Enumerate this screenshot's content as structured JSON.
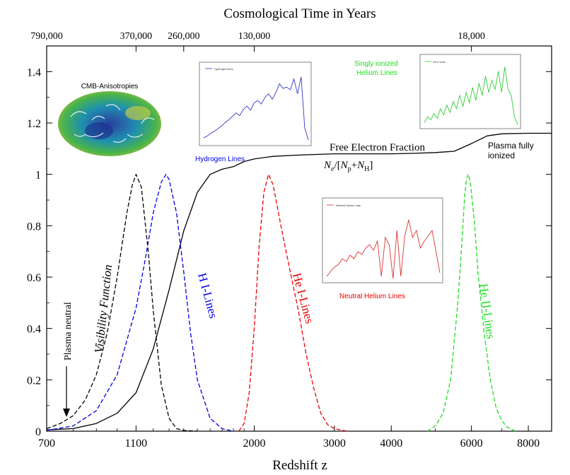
{
  "chart_data": {
    "type": "line",
    "title": "Cosmological Time in Years",
    "xlabel": "Redshift z",
    "ylabel": "",
    "xscale": "log",
    "xlim": [
      700,
      9000
    ],
    "ylim": [
      0,
      1.5
    ],
    "grid": false,
    "x_ticks": [
      {
        "value": 700,
        "label": "700"
      },
      {
        "value": 1100,
        "label": "1100"
      },
      {
        "value": 2000,
        "label": "2000"
      },
      {
        "value": 3000,
        "label": "3000"
      },
      {
        "value": 4000,
        "label": "4000"
      },
      {
        "value": 6000,
        "label": "6000"
      },
      {
        "value": 8000,
        "label": "8000"
      }
    ],
    "y_ticks": [
      {
        "value": 0,
        "label": "0"
      },
      {
        "value": 0.2,
        "label": "0.2"
      },
      {
        "value": 0.4,
        "label": "0.4"
      },
      {
        "value": 0.6,
        "label": "0.6"
      },
      {
        "value": 0.8,
        "label": "0.8"
      },
      {
        "value": 1,
        "label": "1"
      },
      {
        "value": 1.2,
        "label": "1.2"
      },
      {
        "value": 1.4,
        "label": "1.4"
      }
    ],
    "top_ticks": [
      {
        "z": 700,
        "label": "790,000"
      },
      {
        "z": 1100,
        "label": "370,000"
      },
      {
        "z": 1400,
        "label": "260,000"
      },
      {
        "z": 2000,
        "label": "130,000"
      },
      {
        "z": 6000,
        "label": "18,000"
      }
    ],
    "series": [
      {
        "name": "Free Electron Fraction",
        "color": "#000000",
        "dash": "solid",
        "x": [
          700,
          800,
          900,
          1000,
          1100,
          1200,
          1300,
          1400,
          1500,
          1600,
          1700,
          1800,
          1900,
          2000,
          2200,
          2500,
          3000,
          3500,
          4000,
          4500,
          5000,
          5500,
          6000,
          6500,
          7000,
          8000,
          9000
        ],
        "y": [
          0.005,
          0.01,
          0.03,
          0.07,
          0.15,
          0.32,
          0.55,
          0.78,
          0.93,
          1.0,
          1.02,
          1.03,
          1.05,
          1.06,
          1.07,
          1.075,
          1.08,
          1.08,
          1.08,
          1.082,
          1.085,
          1.09,
          1.12,
          1.15,
          1.158,
          1.16,
          1.16
        ]
      },
      {
        "name": "Visibility Function",
        "color": "#000000",
        "dash": "dashed",
        "x": [
          700,
          750,
          800,
          850,
          900,
          950,
          1000,
          1050,
          1080,
          1100,
          1130,
          1170,
          1200,
          1250,
          1300,
          1350,
          1400,
          1500
        ],
        "y": [
          0.01,
          0.03,
          0.06,
          0.12,
          0.22,
          0.38,
          0.6,
          0.85,
          0.96,
          1.0,
          0.95,
          0.7,
          0.47,
          0.18,
          0.05,
          0.01,
          0.003,
          0.0
        ]
      },
      {
        "name": "H I-Lines",
        "color": "#0000dd",
        "dash": "dashed",
        "x": [
          700,
          800,
          900,
          1000,
          1100,
          1150,
          1200,
          1250,
          1280,
          1300,
          1350,
          1400,
          1450,
          1500,
          1600,
          1700,
          1800
        ],
        "y": [
          0.003,
          0.02,
          0.08,
          0.22,
          0.48,
          0.66,
          0.85,
          0.97,
          1.0,
          0.98,
          0.85,
          0.62,
          0.38,
          0.2,
          0.05,
          0.01,
          0.0
        ]
      },
      {
        "name": "He I-Lines",
        "color": "#ee0000",
        "dash": "dashed",
        "x": [
          1850,
          1900,
          1950,
          2000,
          2050,
          2100,
          2150,
          2200,
          2250,
          2300,
          2400,
          2500,
          2600,
          2700,
          2800,
          2900,
          3000,
          3200
        ],
        "y": [
          0.0,
          0.03,
          0.15,
          0.4,
          0.72,
          0.93,
          1.0,
          0.96,
          0.87,
          0.78,
          0.62,
          0.47,
          0.3,
          0.17,
          0.07,
          0.025,
          0.01,
          0.0
        ]
      },
      {
        "name": "He II-Lines",
        "color": "#22dd22",
        "dash": "dashed",
        "x": [
          4800,
          5000,
          5200,
          5400,
          5600,
          5700,
          5800,
          5850,
          5900,
          5950,
          6000,
          6100,
          6200,
          6400,
          6600,
          6800,
          7000,
          7200,
          7500
        ],
        "y": [
          0.0,
          0.02,
          0.07,
          0.2,
          0.5,
          0.7,
          0.92,
          0.98,
          1.0,
          0.98,
          0.93,
          0.8,
          0.62,
          0.38,
          0.2,
          0.09,
          0.04,
          0.015,
          0.0
        ]
      }
    ],
    "annotations": {
      "free_electron_label": "Free Electron Fraction",
      "plasma_full_1": "Plasma fully",
      "plasma_full_2": "ionized",
      "plasma_neutral": "Plasma neutral",
      "visibility": "Visibility Function",
      "h_lines": "H I-Lines",
      "he1_lines": "He I-Lines",
      "he2_lines": "He II-Lines",
      "ne": "N",
      "ne_sub": "e",
      "np": "N",
      "np_sub": "p",
      "nh": "N",
      "nh_sub": "H",
      "cmb": "CMB-Anisotropies",
      "inset_h": "Hydrogen Lines",
      "inset_h_legend": "Hydrogen lines",
      "inset_he2_1": "Singly ionized",
      "inset_he2_2": "Helium Lines",
      "inset_he2_legend": "He II lines",
      "inset_he1": "Neutral Helium Lines",
      "inset_he1_legend": "Neutral Helium only"
    },
    "insets": [
      {
        "name": "hydrogen-lines-inset",
        "color": "#3333cc",
        "y": [
          0.05,
          0.08,
          0.12,
          0.15,
          0.19,
          0.23,
          0.28,
          0.32,
          0.37,
          0.42,
          0.38,
          0.47,
          0.52,
          0.46,
          0.57,
          0.6,
          0.55,
          0.65,
          0.7,
          0.62,
          0.72,
          0.85,
          0.78,
          0.8,
          0.76,
          0.92,
          0.7,
          0.95,
          0.2,
          0.02
        ]
      },
      {
        "name": "singly-ionized-helium-inset",
        "color": "#33cc33",
        "y": [
          0.05,
          0.15,
          0.1,
          0.2,
          0.12,
          0.28,
          0.18,
          0.34,
          0.22,
          0.4,
          0.28,
          0.5,
          0.32,
          0.55,
          0.38,
          0.63,
          0.42,
          0.7,
          0.5,
          0.82,
          0.55,
          0.75,
          0.6,
          0.9,
          0.55,
          0.97,
          0.6,
          0.5,
          0.15,
          0.02
        ]
      },
      {
        "name": "neutral-helium-inset",
        "color": "#dd3333",
        "y": [
          0.05,
          0.12,
          0.18,
          0.22,
          0.3,
          0.26,
          0.35,
          0.3,
          0.4,
          0.36,
          0.45,
          0.5,
          0.42,
          0.55,
          0.05,
          0.6,
          0.5,
          0.02,
          0.7,
          0.05,
          0.62,
          0.85,
          0.6,
          0.7,
          0.45,
          0.55,
          0.62,
          0.7,
          0.4,
          0.1
        ]
      }
    ]
  }
}
